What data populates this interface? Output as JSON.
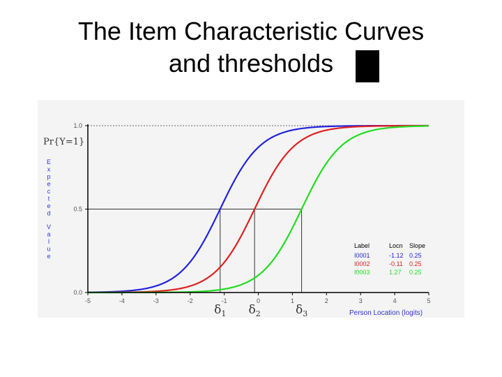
{
  "slide": {
    "title_line1": "The Item Characteristic Curves",
    "title_line2": "and thresholds"
  },
  "chart_data": {
    "type": "line",
    "ylabel_top": "Pr{Y=1}",
    "ylabel_vertical": "Expected Value",
    "xlabel": "Person Location (logits)",
    "xlim": [
      -5,
      5
    ],
    "ylim": [
      0,
      1
    ],
    "x_ticks": [
      "-5",
      "-4",
      "-3",
      "-2",
      "-1",
      "0",
      "1",
      "2",
      "3",
      "4",
      "5"
    ],
    "y_ticks": [
      "0.0",
      "0.5",
      "1.0"
    ],
    "threshold_labels": [
      "δ1",
      "δ2",
      "δ3"
    ],
    "legend": {
      "headers": [
        "Label",
        "Locn",
        "Slope"
      ],
      "rows": [
        {
          "label": "I0001",
          "locn": "-1.12",
          "slope": "0.25"
        },
        {
          "label": "I0002",
          "locn": "-0.11",
          "slope": "0.25"
        },
        {
          "label": "I0003",
          "locn": "1.27",
          "slope": "0.25"
        }
      ]
    },
    "series": [
      {
        "name": "I0001",
        "location": -1.12,
        "slope": 0.25,
        "color": "#2222dd"
      },
      {
        "name": "I0002",
        "location": -0.11,
        "slope": 0.25,
        "color": "#e02020"
      },
      {
        "name": "I0003",
        "location": 1.27,
        "slope": 0.25,
        "color": "#22dd22"
      }
    ],
    "reference_lines": {
      "y": 0.5,
      "thresholds": [
        -1.12,
        -0.11,
        1.27
      ]
    },
    "colors": {
      "axis": "#000000",
      "label_blue": "#3333cc",
      "tick_text": "#555555"
    }
  }
}
